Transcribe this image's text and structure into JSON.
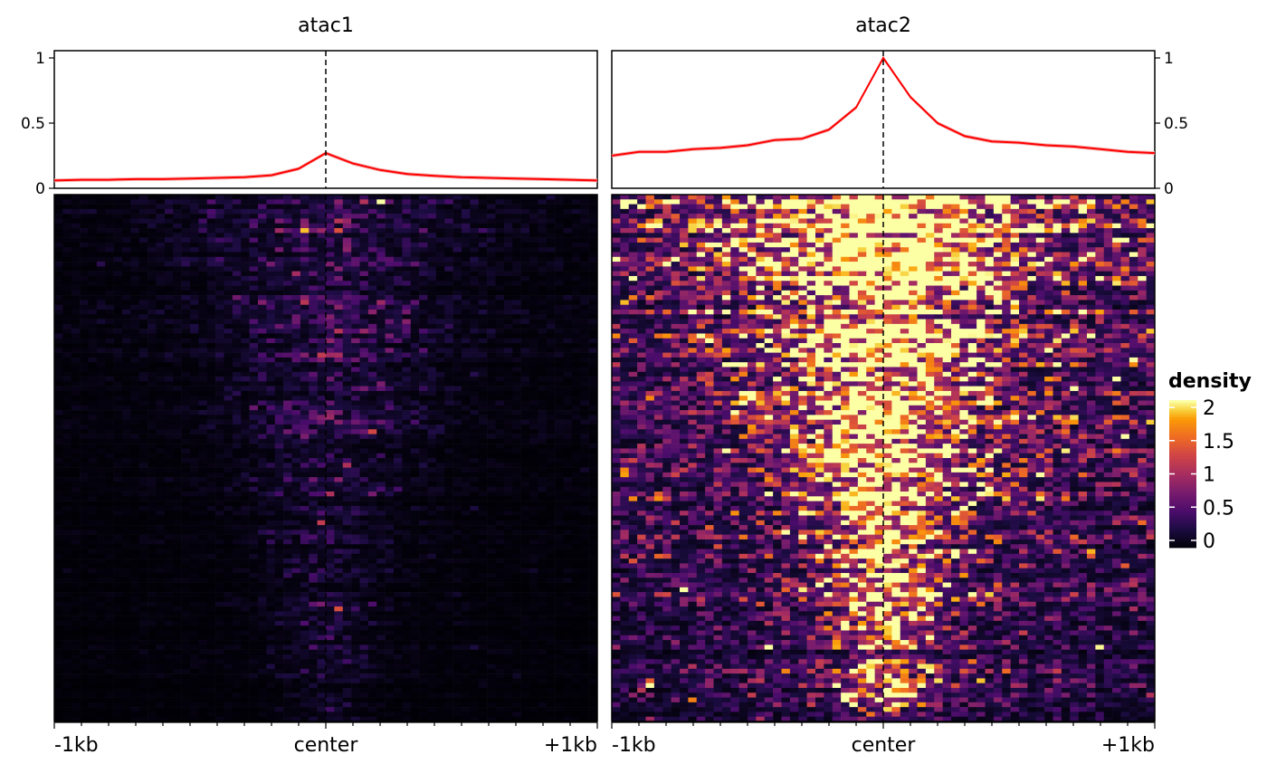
{
  "chart_data": {
    "type": "heatmap",
    "colormap": "inferno",
    "legend": {
      "title": "density",
      "ticks": [
        "0",
        "0.5",
        "1",
        "1.5",
        "2"
      ],
      "range": [
        0,
        2
      ],
      "placement": "right"
    },
    "x_ticks": [
      "-1kb",
      "center",
      "+1kb"
    ],
    "profile_x": [
      -1,
      -0.9,
      -0.8,
      -0.7,
      -0.6,
      -0.5,
      -0.4,
      -0.3,
      -0.2,
      -0.1,
      0,
      0.1,
      0.2,
      0.3,
      0.4,
      0.5,
      0.6,
      0.7,
      0.8,
      0.9,
      1
    ],
    "profile_ylim": [
      0,
      1
    ],
    "profile_yticks": [
      "0",
      "0.5",
      "1"
    ],
    "line_color": "#ff0000",
    "heatmap_rows": 110,
    "heatmap_cols": 64,
    "panels": [
      {
        "title": "atac1",
        "profile": [
          0.06,
          0.065,
          0.065,
          0.07,
          0.07,
          0.075,
          0.08,
          0.085,
          0.1,
          0.15,
          0.27,
          0.19,
          0.14,
          0.11,
          0.095,
          0.085,
          0.08,
          0.075,
          0.07,
          0.065,
          0.06
        ],
        "signal_scale": 0.3
      },
      {
        "title": "atac2",
        "profile": [
          0.25,
          0.28,
          0.28,
          0.3,
          0.31,
          0.33,
          0.37,
          0.38,
          0.45,
          0.62,
          1.0,
          0.7,
          0.5,
          0.4,
          0.36,
          0.35,
          0.33,
          0.32,
          0.3,
          0.28,
          0.27
        ],
        "signal_scale": 1.0
      }
    ]
  }
}
